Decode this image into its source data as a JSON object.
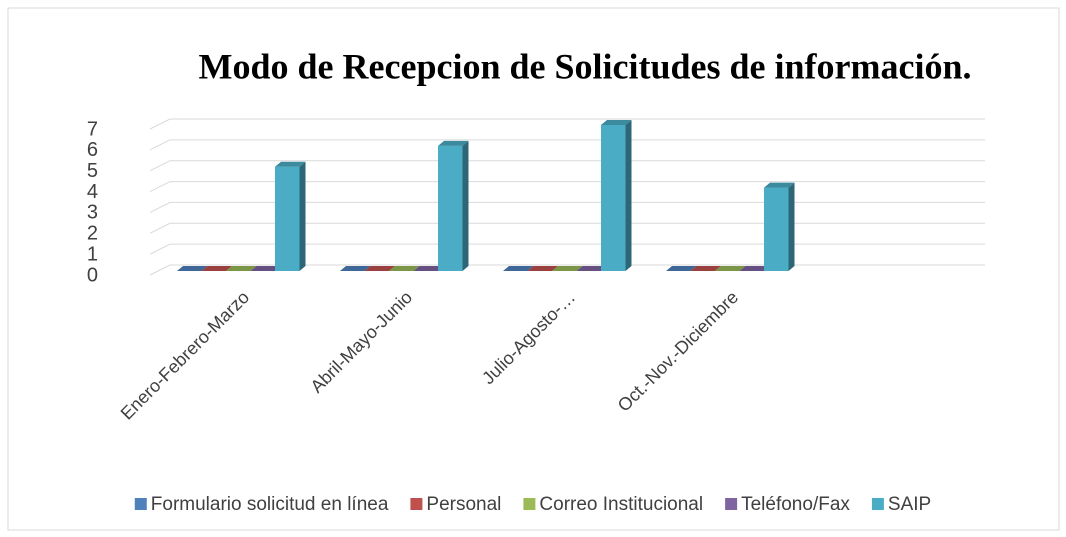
{
  "chart_data": {
    "type": "bar3d",
    "title": "Modo de Recepcion de Solicitudes de información.",
    "categories": [
      "Enero-Febrero-Marzo",
      "Abril-Mayo-Junio",
      "Julio-Agosto-…",
      "Oct.-Nov.-Diciembre"
    ],
    "series": [
      {
        "name": "Formulario solicitud en línea",
        "color": "#4f81bd",
        "values": [
          0,
          0,
          0,
          0
        ]
      },
      {
        "name": "Personal",
        "color": "#c0504d",
        "values": [
          0,
          0,
          0,
          0
        ]
      },
      {
        "name": "Correo Institucional",
        "color": "#9bbb59",
        "values": [
          0,
          0,
          0,
          0
        ]
      },
      {
        "name": "Teléfono/Fax",
        "color": "#8064a2",
        "values": [
          0,
          0,
          0,
          0
        ]
      },
      {
        "name": "SAIP",
        "color": "#4bacc6",
        "values": [
          5,
          6,
          7,
          4
        ]
      }
    ],
    "ylim": [
      0,
      7
    ],
    "yticks": [
      0,
      1,
      2,
      3,
      4,
      5,
      6,
      7
    ],
    "grid": true,
    "legend": "bottom"
  }
}
